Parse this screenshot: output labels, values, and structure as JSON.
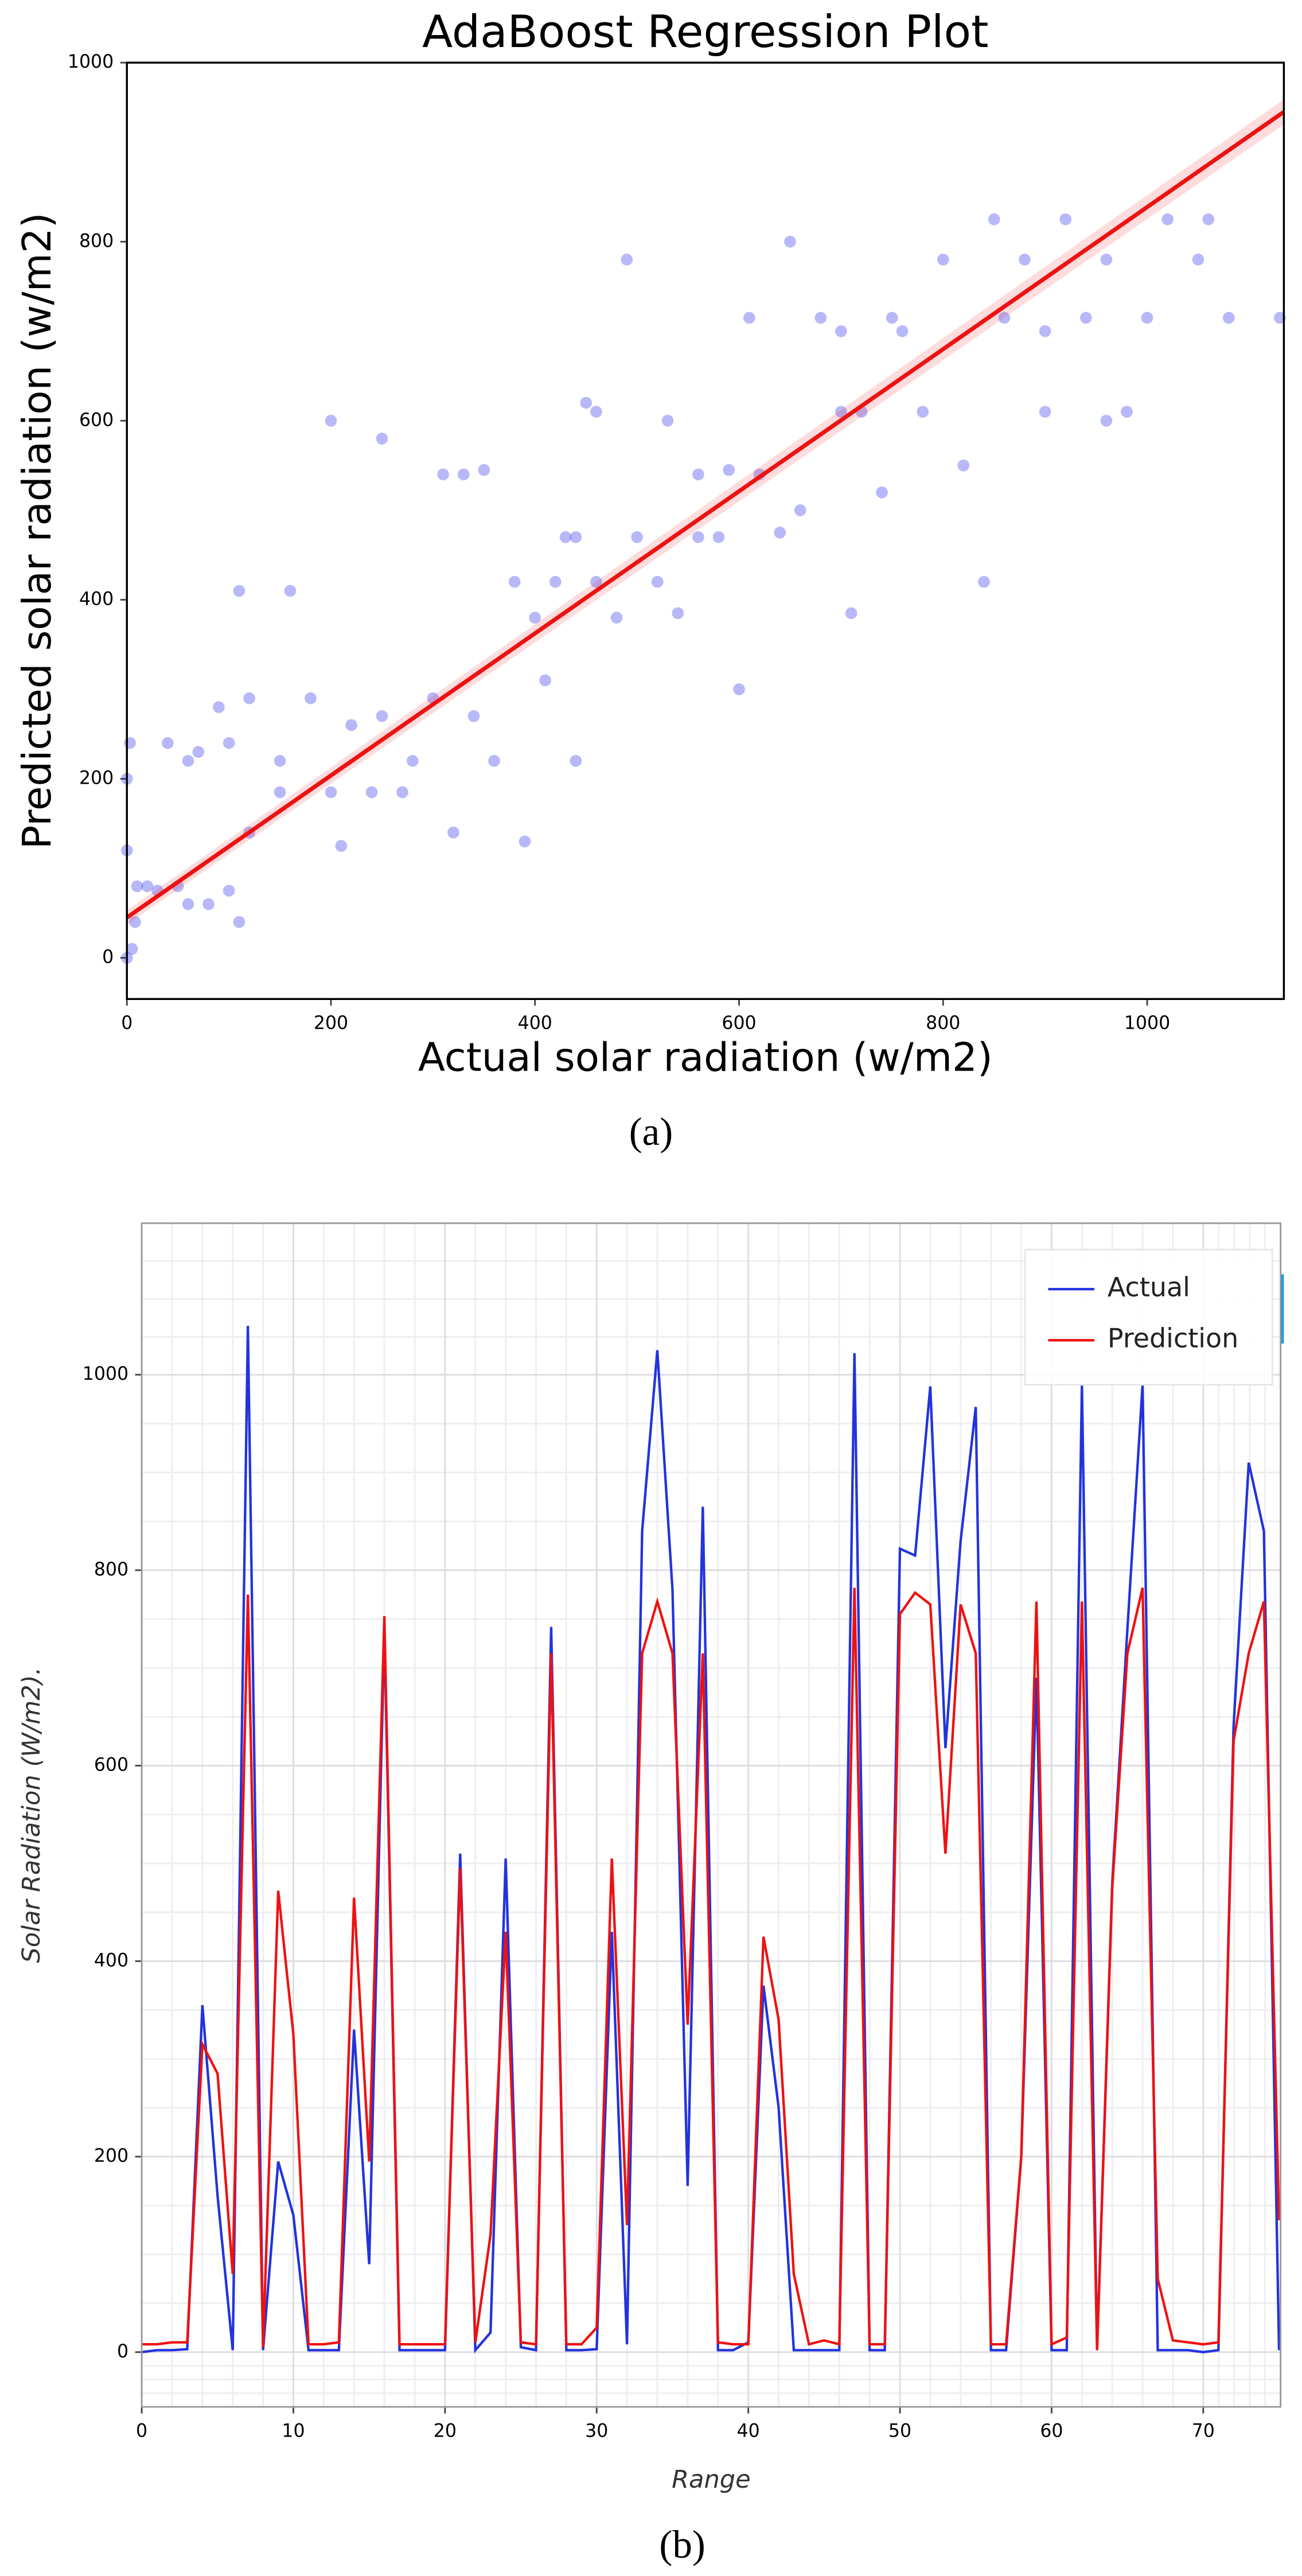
{
  "chart_data": [
    {
      "type": "scatter",
      "title": "AdaBoost Regression Plot",
      "xlabel": "Actual solar radiation (w/m2)",
      "ylabel": "Predicted solar radiation (w/m2)",
      "caption": "(a)",
      "x": [
        0,
        5,
        10,
        20,
        0,
        8,
        30,
        50,
        60,
        80,
        100,
        110,
        0,
        3,
        40,
        70,
        90,
        100,
        110,
        120,
        150,
        160,
        180,
        200,
        210,
        220,
        240,
        250,
        270,
        280,
        300,
        310,
        320,
        340,
        350,
        360,
        380,
        390,
        400,
        410,
        420,
        430,
        440,
        450,
        460,
        480,
        490,
        500,
        520,
        530,
        540,
        560,
        580,
        600,
        610,
        620,
        640,
        660,
        680,
        700,
        710,
        720,
        740,
        760,
        780,
        800,
        820,
        840,
        860,
        880,
        900,
        920,
        940,
        960,
        980,
        1000,
        1020,
        1050,
        1080,
        1130,
        850,
        900,
        750,
        650,
        590,
        460,
        560,
        440,
        330,
        200,
        150,
        120,
        60,
        250,
        700,
        960,
        1060
      ],
      "y": [
        0,
        10,
        80,
        80,
        120,
        40,
        75,
        80,
        60,
        60,
        75,
        40,
        200,
        240,
        240,
        230,
        280,
        240,
        410,
        290,
        220,
        410,
        290,
        185,
        125,
        260,
        185,
        270,
        185,
        220,
        290,
        540,
        140,
        270,
        545,
        220,
        420,
        130,
        380,
        310,
        420,
        470,
        470,
        620,
        420,
        380,
        780,
        470,
        420,
        600,
        385,
        540,
        470,
        300,
        715,
        540,
        475,
        500,
        715,
        610,
        385,
        610,
        520,
        700,
        610,
        780,
        550,
        420,
        715,
        780,
        610,
        825,
        715,
        780,
        610,
        715,
        825,
        780,
        715,
        715,
        825,
        700,
        715,
        800,
        545,
        610,
        470,
        220,
        540,
        600,
        185,
        140,
        220,
        580,
        700,
        600,
        825
      ],
      "color": "#3333ee",
      "fit_x": [
        0,
        1134
      ],
      "fit_y": [
        45,
        945
      ],
      "fit_color": "#ee1111",
      "xlim": [
        0,
        1134
      ],
      "ylim": [
        -46,
        1000
      ],
      "xticks": [
        0,
        200,
        400,
        600,
        800,
        1000
      ],
      "yticks": [
        0,
        200,
        400,
        600,
        800,
        1000
      ]
    },
    {
      "type": "line",
      "xlabel": "Range",
      "ylabel": "Solar Radiation (W/m2).",
      "caption": "(b)",
      "legend": "upper right",
      "grid": true,
      "x": [
        0,
        1,
        2,
        3,
        4,
        5,
        6,
        7,
        8,
        9,
        10,
        11,
        12,
        13,
        14,
        15,
        16,
        17,
        18,
        19,
        20,
        21,
        22,
        23,
        24,
        25,
        26,
        27,
        28,
        29,
        30,
        31,
        32,
        33,
        34,
        35,
        36,
        37,
        38,
        39,
        40,
        41,
        42,
        43,
        44,
        45,
        46,
        47,
        48,
        49,
        50,
        51,
        52,
        53,
        54,
        55,
        56,
        57,
        58,
        59,
        60,
        61,
        62,
        63,
        64,
        65,
        66,
        67,
        68,
        69,
        70,
        71,
        72,
        73,
        74,
        75
      ],
      "series": [
        {
          "name": "Actual",
          "color": "#2233dd",
          "values": [
            0,
            2,
            2,
            3,
            355,
            160,
            2,
            1050,
            2,
            195,
            140,
            2,
            2,
            2,
            330,
            90,
            740,
            2,
            2,
            2,
            2,
            510,
            2,
            20,
            505,
            5,
            2,
            742,
            2,
            2,
            3,
            430,
            8,
            840,
            1025,
            780,
            170,
            865,
            2,
            2,
            10,
            375,
            250,
            2,
            2,
            2,
            2,
            1022,
            2,
            2,
            822,
            815,
            988,
            618,
            830,
            967,
            2,
            2,
            200,
            690,
            2,
            2,
            990,
            2,
            480,
            740,
            990,
            2,
            2,
            2,
            0,
            2,
            640,
            910,
            840,
            2
          ]
        },
        {
          "name": "Prediction",
          "color": "#ee1111",
          "values": [
            8,
            8,
            10,
            10,
            315,
            285,
            80,
            775,
            5,
            472,
            325,
            8,
            8,
            10,
            465,
            195,
            753,
            8,
            8,
            8,
            8,
            495,
            10,
            120,
            430,
            10,
            8,
            715,
            8,
            8,
            25,
            505,
            130,
            715,
            768,
            715,
            335,
            715,
            10,
            8,
            8,
            425,
            340,
            80,
            8,
            12,
            8,
            782,
            8,
            8,
            755,
            777,
            765,
            510,
            765,
            715,
            8,
            8,
            200,
            768,
            8,
            15,
            768,
            2,
            475,
            715,
            782,
            75,
            12,
            10,
            8,
            10,
            625,
            715,
            768,
            135
          ]
        }
      ],
      "xlim": [
        0,
        75.1
      ],
      "ylim": [
        -56,
        1155
      ],
      "xticks": [
        0,
        10,
        20,
        30,
        40,
        50,
        60,
        70
      ],
      "yticks": [
        0,
        200,
        400,
        600,
        800,
        1000
      ]
    }
  ]
}
